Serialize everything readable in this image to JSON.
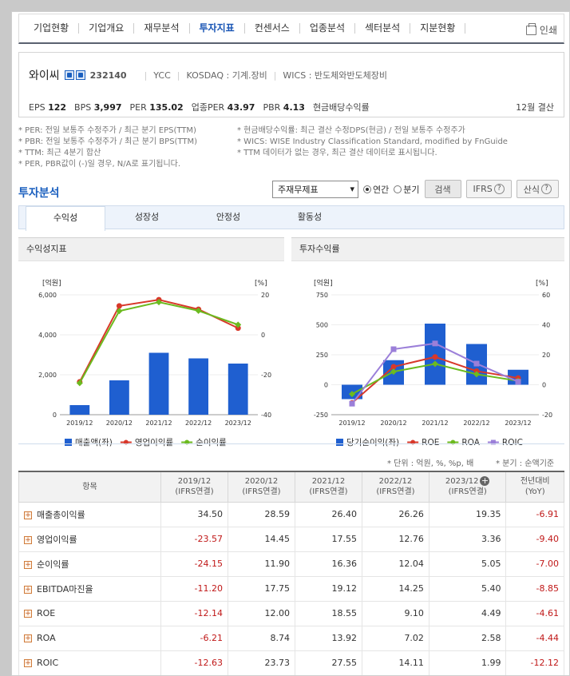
{
  "nav": {
    "tabs": [
      "기업현황",
      "기업개요",
      "재무분석",
      "투자지표",
      "컨센서스",
      "업종분석",
      "섹터분석",
      "지분현황"
    ],
    "active": 3,
    "print_label": "인쇄"
  },
  "company": {
    "name": "와이씨",
    "code": "232140",
    "eng": "YCC",
    "market": "KOSDAQ : 기계.장비",
    "wics": "WICS : 반도체와반도체장비",
    "metrics": [
      {
        "k": "EPS",
        "v": "122"
      },
      {
        "k": "BPS",
        "v": "3,997"
      },
      {
        "k": "PER",
        "v": "135.02"
      },
      {
        "k": "업종PER",
        "v": "43.97"
      },
      {
        "k": "PBR",
        "v": "4.13"
      },
      {
        "k": "현금배당수익률",
        "v": ""
      }
    ],
    "closing": "12월 결산"
  },
  "notes": {
    "left": [
      "* PER: 전일 보통주 수정주가 / 최근 분기 EPS(TTM)",
      "* PBR: 전일 보통주 수정주가 / 최근 분기 BPS(TTM)",
      "* TTM: 최근 4분기 합산",
      "* PER, PBR값이 (-)일 경우, N/A로 표기됩니다."
    ],
    "right": [
      "* 현금배당수익률: 최근 결산 수정DPS(현금) / 전일 보통주 수정주가",
      "* WICS: WISE Industry Classification Standard, modified by FnGuide",
      "* TTM 데이터가 없는 경우, 최근 결산 데이터로 표시됩니다."
    ]
  },
  "analysis": {
    "title": "투자분석",
    "select_value": "주재무제표",
    "radio_annual": "연간",
    "radio_quarter": "분기",
    "search_btn": "검색",
    "ifrs_btn": "IFRS",
    "formula_btn": "산식",
    "q_mark": "?",
    "subtabs": [
      "수익성",
      "성장성",
      "안정성",
      "활동성"
    ]
  },
  "panels": {
    "left_title": "수익성지표",
    "right_title": "투자수익률"
  },
  "chart_data": [
    {
      "type": "bar",
      "categories": [
        "2019/12",
        "2020/12",
        "2021/12",
        "2022/12",
        "2023/12"
      ],
      "y_left_label": "[억원]",
      "y_right_label": "[%]",
      "ylim_left": [
        0,
        6000
      ],
      "ylim_right": [
        -40,
        20
      ],
      "left_ticks": [
        "6,000",
        "4,000",
        "2,000",
        "0"
      ],
      "right_ticks": [
        "20",
        "0",
        "-20",
        "-40"
      ],
      "series": [
        {
          "name": "매출액(좌)",
          "kind": "bar",
          "axis": "left",
          "color": "#1f5fd0",
          "values": [
            480,
            1720,
            3100,
            2820,
            2560
          ]
        },
        {
          "name": "영업이익률",
          "kind": "line",
          "axis": "right",
          "color": "#d8382a",
          "values": [
            -23.57,
            14.45,
            17.55,
            12.76,
            3.36
          ]
        },
        {
          "name": "순이익률",
          "kind": "line",
          "axis": "right",
          "color": "#6cba1f",
          "values": [
            -24.15,
            11.9,
            16.36,
            12.04,
            5.05
          ]
        }
      ]
    },
    {
      "type": "bar",
      "categories": [
        "2019/12",
        "2020/12",
        "2021/12",
        "2022/12",
        "2023/12"
      ],
      "y_left_label": "[억원]",
      "y_right_label": "[%]",
      "ylim_left": [
        -250,
        750
      ],
      "ylim_right": [
        -20,
        60
      ],
      "left_ticks": [
        "750",
        "500",
        "250",
        "0",
        "-250"
      ],
      "right_ticks": [
        "60",
        "40",
        "20",
        "0",
        "-20"
      ],
      "series": [
        {
          "name": "당기순이익(좌)",
          "kind": "bar",
          "axis": "left",
          "color": "#1f5fd0",
          "values": [
            -120,
            205,
            510,
            340,
            125
          ]
        },
        {
          "name": "ROE",
          "kind": "line",
          "axis": "right",
          "color": "#d8382a",
          "values": [
            -12.14,
            12.0,
            18.55,
            9.1,
            4.49
          ]
        },
        {
          "name": "ROA",
          "kind": "line",
          "axis": "right",
          "color": "#6cba1f",
          "values": [
            -6.21,
            8.74,
            13.92,
            7.02,
            2.58
          ]
        },
        {
          "name": "ROIC",
          "kind": "line",
          "axis": "right",
          "color": "#9b7fd9",
          "values": [
            -12.63,
            23.73,
            27.55,
            14.11,
            1.99
          ]
        }
      ]
    }
  ],
  "units": {
    "left": "* 단위 : 억원, %, %p, 배",
    "right": "* 분기 : 순액기준"
  },
  "table": {
    "header_item": "항목",
    "periods": [
      {
        "y": "2019/12",
        "s": "(IFRS연결)"
      },
      {
        "y": "2020/12",
        "s": "(IFRS연결)"
      },
      {
        "y": "2021/12",
        "s": "(IFRS연결)"
      },
      {
        "y": "2022/12",
        "s": "(IFRS연결)"
      },
      {
        "y": "2023/12",
        "s": "(IFRS연결)"
      }
    ],
    "yoy_header": "전년대비",
    "yoy_sub": "(YoY)",
    "rows": [
      {
        "label": "매출총이익률",
        "values": [
          "34.50",
          "28.59",
          "26.40",
          "26.26",
          "19.35"
        ],
        "yoy": "-6.91"
      },
      {
        "label": "영업이익률",
        "values": [
          "-23.57",
          "14.45",
          "17.55",
          "12.76",
          "3.36"
        ],
        "yoy": "-9.40"
      },
      {
        "label": "순이익률",
        "values": [
          "-24.15",
          "11.90",
          "16.36",
          "12.04",
          "5.05"
        ],
        "yoy": "-7.00"
      },
      {
        "label": "EBITDA마진율",
        "values": [
          "-11.20",
          "17.75",
          "19.12",
          "14.25",
          "5.40"
        ],
        "yoy": "-8.85"
      },
      {
        "label": "ROE",
        "values": [
          "-12.14",
          "12.00",
          "18.55",
          "9.10",
          "4.49"
        ],
        "yoy": "-4.61"
      },
      {
        "label": "ROA",
        "values": [
          "-6.21",
          "8.74",
          "13.92",
          "7.02",
          "2.58"
        ],
        "yoy": "-4.44"
      },
      {
        "label": "ROIC",
        "values": [
          "-12.63",
          "23.73",
          "27.55",
          "14.11",
          "1.99"
        ],
        "yoy": "-12.12"
      }
    ]
  }
}
